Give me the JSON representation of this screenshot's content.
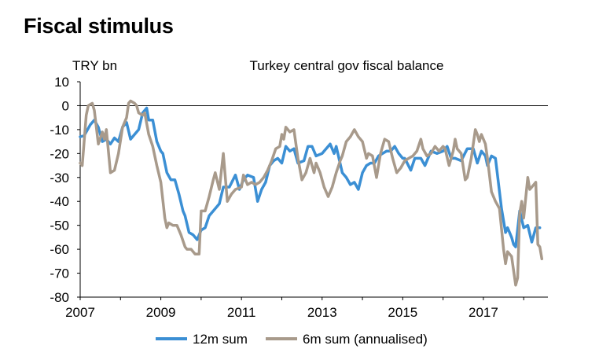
{
  "page_title": "Fiscal stimulus",
  "chart_data": {
    "type": "line",
    "title": "Turkey central gov fiscal balance",
    "ylabel": "TRY bn",
    "xlabel": "",
    "ylim": [
      -80,
      10
    ],
    "xlim": [
      2007,
      2018.6
    ],
    "yticks": [
      "10",
      "0",
      "-10",
      "-20",
      "-30",
      "-40",
      "-50",
      "-60",
      "-70",
      "-80"
    ],
    "xticks": [
      "2007",
      "2009",
      "2011",
      "2013",
      "2015",
      "2017"
    ],
    "grid": false,
    "zero_line": true,
    "legend_position": "bottom",
    "series": [
      {
        "name": "12m sum",
        "color": "#3b8fd4",
        "points": [
          [
            2007.0,
            -13
          ],
          [
            2007.1,
            -12.5
          ],
          [
            2007.25,
            -8
          ],
          [
            2007.35,
            -6
          ],
          [
            2007.45,
            -9
          ],
          [
            2007.55,
            -15
          ],
          [
            2007.65,
            -14
          ],
          [
            2007.75,
            -16
          ],
          [
            2007.85,
            -13.5
          ],
          [
            2007.95,
            -15
          ],
          [
            2008.05,
            -9
          ],
          [
            2008.15,
            -7
          ],
          [
            2008.25,
            -14
          ],
          [
            2008.35,
            -12
          ],
          [
            2008.45,
            -10
          ],
          [
            2008.55,
            -3
          ],
          [
            2008.65,
            -1
          ],
          [
            2008.7,
            -6
          ],
          [
            2008.8,
            -6
          ],
          [
            2008.9,
            -15
          ],
          [
            2009.0,
            -19
          ],
          [
            2009.05,
            -20
          ],
          [
            2009.15,
            -28
          ],
          [
            2009.25,
            -31
          ],
          [
            2009.35,
            -31
          ],
          [
            2009.45,
            -37
          ],
          [
            2009.55,
            -44
          ],
          [
            2009.6,
            -46
          ],
          [
            2009.7,
            -53
          ],
          [
            2009.8,
            -54
          ],
          [
            2009.9,
            -56
          ],
          [
            2010.0,
            -52
          ],
          [
            2010.1,
            -51
          ],
          [
            2010.2,
            -46
          ],
          [
            2010.3,
            -44
          ],
          [
            2010.45,
            -41
          ],
          [
            2010.55,
            -34
          ],
          [
            2010.7,
            -34
          ],
          [
            2010.85,
            -29
          ],
          [
            2010.95,
            -35
          ],
          [
            2011.05,
            -31
          ],
          [
            2011.15,
            -29
          ],
          [
            2011.3,
            -30
          ],
          [
            2011.4,
            -40
          ],
          [
            2011.5,
            -35
          ],
          [
            2011.6,
            -32
          ],
          [
            2011.7,
            -25
          ],
          [
            2011.8,
            -23
          ],
          [
            2011.9,
            -22
          ],
          [
            2012.0,
            -24
          ],
          [
            2012.1,
            -17
          ],
          [
            2012.2,
            -19
          ],
          [
            2012.3,
            -18
          ],
          [
            2012.4,
            -24
          ],
          [
            2012.55,
            -23
          ],
          [
            2012.65,
            -17
          ],
          [
            2012.75,
            -17
          ],
          [
            2012.85,
            -21
          ],
          [
            2013.0,
            -20
          ],
          [
            2013.05,
            -19
          ],
          [
            2013.2,
            -16
          ],
          [
            2013.3,
            -20
          ],
          [
            2013.35,
            -17
          ],
          [
            2013.5,
            -28
          ],
          [
            2013.6,
            -30
          ],
          [
            2013.7,
            -33
          ],
          [
            2013.8,
            -32
          ],
          [
            2013.9,
            -35
          ],
          [
            2014.0,
            -28
          ],
          [
            2014.1,
            -25
          ],
          [
            2014.2,
            -24
          ],
          [
            2014.3,
            -24
          ],
          [
            2014.4,
            -21
          ],
          [
            2014.5,
            -20
          ],
          [
            2014.6,
            -19
          ],
          [
            2014.7,
            -19
          ],
          [
            2014.8,
            -17
          ],
          [
            2014.9,
            -20
          ],
          [
            2015.0,
            -22
          ],
          [
            2015.05,
            -22
          ],
          [
            2015.2,
            -27
          ],
          [
            2015.3,
            -22
          ],
          [
            2015.45,
            -22
          ],
          [
            2015.55,
            -25
          ],
          [
            2015.7,
            -19
          ],
          [
            2015.85,
            -20
          ],
          [
            2016.0,
            -19
          ],
          [
            2016.1,
            -17
          ],
          [
            2016.2,
            -22
          ],
          [
            2016.3,
            -22
          ],
          [
            2016.45,
            -23
          ],
          [
            2016.6,
            -18
          ],
          [
            2016.75,
            -18
          ],
          [
            2016.85,
            -24
          ],
          [
            2016.95,
            -19
          ],
          [
            2017.05,
            -21
          ],
          [
            2017.1,
            -25
          ],
          [
            2017.2,
            -21
          ],
          [
            2017.3,
            -22
          ],
          [
            2017.45,
            -43
          ],
          [
            2017.55,
            -53
          ],
          [
            2017.6,
            -51
          ],
          [
            2017.7,
            -55
          ],
          [
            2017.75,
            -58
          ],
          [
            2017.8,
            -59
          ],
          [
            2017.9,
            -44
          ],
          [
            2018.0,
            -51
          ],
          [
            2018.1,
            -50
          ],
          [
            2018.2,
            -57
          ],
          [
            2018.3,
            -51
          ],
          [
            2018.4,
            -51
          ]
        ]
      },
      {
        "name": "6m sum (annualised)",
        "color": "#a89a8b",
        "points": [
          [
            2007.0,
            -24
          ],
          [
            2007.05,
            -25
          ],
          [
            2007.15,
            -4
          ],
          [
            2007.2,
            0
          ],
          [
            2007.3,
            1
          ],
          [
            2007.35,
            -2
          ],
          [
            2007.45,
            -16
          ],
          [
            2007.55,
            -11
          ],
          [
            2007.6,
            -14
          ],
          [
            2007.65,
            -10
          ],
          [
            2007.75,
            -28
          ],
          [
            2007.85,
            -27
          ],
          [
            2007.95,
            -20
          ],
          [
            2008.05,
            -9
          ],
          [
            2008.15,
            -5
          ],
          [
            2008.2,
            1
          ],
          [
            2008.25,
            2
          ],
          [
            2008.35,
            1
          ],
          [
            2008.4,
            0
          ],
          [
            2008.45,
            -3
          ],
          [
            2008.55,
            -4
          ],
          [
            2008.6,
            -3
          ],
          [
            2008.7,
            -12
          ],
          [
            2008.8,
            -17
          ],
          [
            2008.9,
            -25
          ],
          [
            2009.0,
            -32
          ],
          [
            2009.1,
            -47
          ],
          [
            2009.15,
            -51
          ],
          [
            2009.2,
            -49
          ],
          [
            2009.3,
            -50
          ],
          [
            2009.4,
            -50
          ],
          [
            2009.5,
            -54
          ],
          [
            2009.6,
            -59
          ],
          [
            2009.65,
            -60
          ],
          [
            2009.75,
            -60
          ],
          [
            2009.85,
            -62
          ],
          [
            2009.95,
            -62
          ],
          [
            2010.0,
            -44
          ],
          [
            2010.1,
            -44
          ],
          [
            2010.2,
            -38
          ],
          [
            2010.3,
            -31
          ],
          [
            2010.35,
            -28
          ],
          [
            2010.45,
            -35
          ],
          [
            2010.55,
            -20
          ],
          [
            2010.65,
            -40
          ],
          [
            2010.75,
            -37
          ],
          [
            2010.85,
            -35
          ],
          [
            2011.0,
            -34
          ],
          [
            2011.05,
            -29
          ],
          [
            2011.15,
            -33
          ],
          [
            2011.25,
            -32
          ],
          [
            2011.35,
            -33
          ],
          [
            2011.45,
            -32
          ],
          [
            2011.55,
            -30
          ],
          [
            2011.65,
            -27
          ],
          [
            2011.75,
            -23
          ],
          [
            2011.85,
            -18
          ],
          [
            2011.95,
            -17
          ],
          [
            2012.0,
            -12
          ],
          [
            2012.05,
            -14
          ],
          [
            2012.1,
            -9
          ],
          [
            2012.15,
            -10
          ],
          [
            2012.2,
            -11
          ],
          [
            2012.3,
            -10
          ],
          [
            2012.4,
            -22
          ],
          [
            2012.5,
            -31
          ],
          [
            2012.6,
            -28
          ],
          [
            2012.7,
            -22
          ],
          [
            2012.8,
            -28
          ],
          [
            2012.85,
            -24
          ],
          [
            2012.95,
            -28
          ],
          [
            2013.05,
            -34
          ],
          [
            2013.15,
            -38
          ],
          [
            2013.25,
            -34
          ],
          [
            2013.35,
            -28
          ],
          [
            2013.45,
            -23
          ],
          [
            2013.5,
            -21
          ],
          [
            2013.6,
            -15
          ],
          [
            2013.7,
            -13
          ],
          [
            2013.8,
            -10
          ],
          [
            2013.9,
            -13
          ],
          [
            2014.0,
            -15
          ],
          [
            2014.1,
            -22
          ],
          [
            2014.15,
            -20
          ],
          [
            2014.25,
            -21
          ],
          [
            2014.35,
            -30
          ],
          [
            2014.45,
            -20
          ],
          [
            2014.55,
            -14
          ],
          [
            2014.65,
            -15
          ],
          [
            2014.75,
            -22
          ],
          [
            2014.85,
            -28
          ],
          [
            2014.95,
            -26
          ],
          [
            2015.05,
            -23
          ],
          [
            2015.15,
            -22
          ],
          [
            2015.25,
            -21
          ],
          [
            2015.35,
            -19
          ],
          [
            2015.45,
            -14
          ],
          [
            2015.5,
            -18
          ],
          [
            2015.6,
            -21
          ],
          [
            2015.7,
            -20
          ],
          [
            2015.8,
            -17
          ],
          [
            2015.9,
            -19
          ],
          [
            2016.0,
            -17
          ],
          [
            2016.05,
            -18
          ],
          [
            2016.15,
            -25
          ],
          [
            2016.25,
            -19
          ],
          [
            2016.3,
            -14
          ],
          [
            2016.35,
            -18
          ],
          [
            2016.45,
            -20
          ],
          [
            2016.55,
            -31
          ],
          [
            2016.6,
            -30
          ],
          [
            2016.7,
            -22
          ],
          [
            2016.8,
            -10
          ],
          [
            2016.85,
            -12
          ],
          [
            2016.9,
            -15
          ],
          [
            2016.95,
            -12
          ],
          [
            2017.05,
            -16
          ],
          [
            2017.1,
            -22
          ],
          [
            2017.2,
            -36
          ],
          [
            2017.3,
            -40
          ],
          [
            2017.4,
            -43
          ],
          [
            2017.5,
            -60
          ],
          [
            2017.55,
            -66
          ],
          [
            2017.6,
            -61
          ],
          [
            2017.7,
            -63
          ],
          [
            2017.75,
            -69
          ],
          [
            2017.8,
            -75
          ],
          [
            2017.85,
            -72
          ],
          [
            2017.9,
            -45
          ],
          [
            2017.95,
            -40
          ],
          [
            2018.0,
            -47
          ],
          [
            2018.1,
            -30
          ],
          [
            2018.15,
            -35
          ],
          [
            2018.2,
            -34
          ],
          [
            2018.3,
            -32
          ],
          [
            2018.35,
            -58
          ],
          [
            2018.4,
            -59
          ],
          [
            2018.45,
            -64
          ]
        ]
      }
    ]
  }
}
